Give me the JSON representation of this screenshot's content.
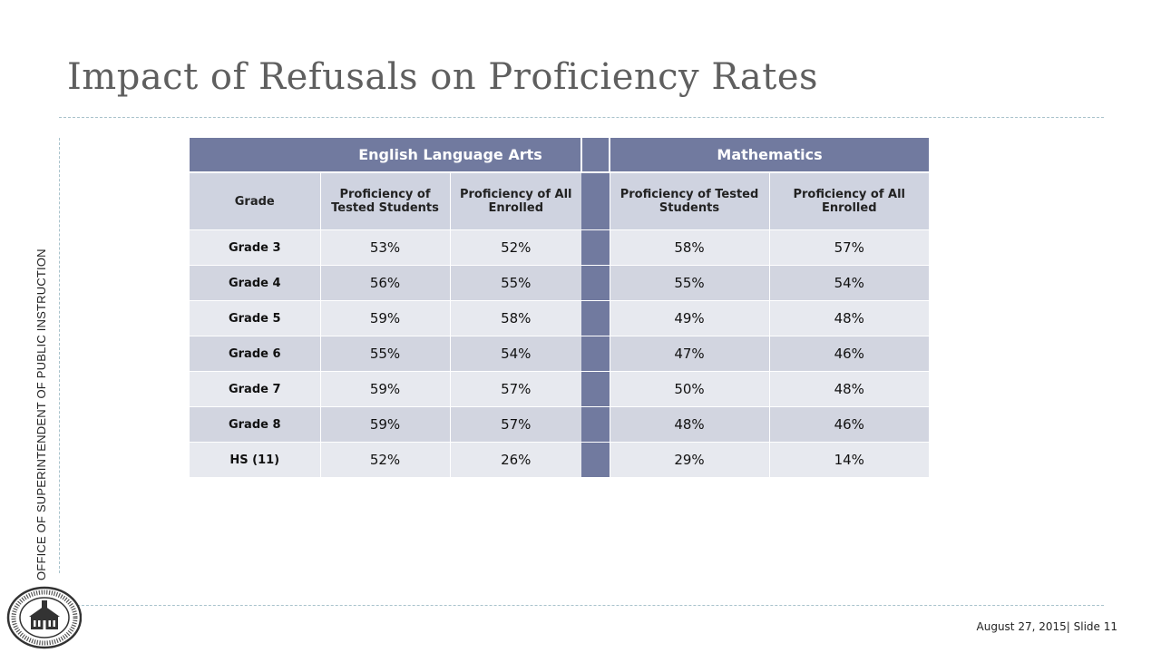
{
  "slide": {
    "title": "Impact of Refusals on Proficiency Rates",
    "sidebar_text": "OFFICE OF SUPERINTENDENT OF PUBLIC INSTRUCTION",
    "footer": "August 27, 2015|   Slide 11",
    "seal_text": "SUPERINTENDENT OF PUBLIC INSTRUCTION · WASHINGTON"
  },
  "table": {
    "subjects": {
      "ela": "English Language Arts",
      "math": "Mathematics"
    },
    "headers": {
      "grade": "Grade",
      "ela_tested": "Proficiency of Tested Students",
      "ela_all": "Proficiency of All Enrolled",
      "math_tested": "Proficiency of Tested Students",
      "math_all": "Proficiency of All Enrolled"
    },
    "rows": [
      {
        "grade": "Grade 3",
        "ela_tested": "53%",
        "ela_all": "52%",
        "math_tested": "58%",
        "math_all": "57%"
      },
      {
        "grade": "Grade 4",
        "ela_tested": "56%",
        "ela_all": "55%",
        "math_tested": "55%",
        "math_all": "54%"
      },
      {
        "grade": "Grade 5",
        "ela_tested": "59%",
        "ela_all": "58%",
        "math_tested": "49%",
        "math_all": "48%"
      },
      {
        "grade": "Grade 6",
        "ela_tested": "55%",
        "ela_all": "54%",
        "math_tested": "47%",
        "math_all": "46%"
      },
      {
        "grade": "Grade 7",
        "ela_tested": "59%",
        "ela_all": "57%",
        "math_tested": "50%",
        "math_all": "48%"
      },
      {
        "grade": "Grade 8",
        "ela_tested": "59%",
        "ela_all": "57%",
        "math_tested": "48%",
        "math_all": "46%"
      },
      {
        "grade": "HS (11)",
        "ela_tested": "52%",
        "ela_all": "26%",
        "math_tested": "29%",
        "math_all": "14%"
      }
    ]
  },
  "colors": {
    "header": "#717a9f",
    "subheader": "#cfd3e0",
    "row_light": "#e7e9ef",
    "row_dark": "#d2d5e0"
  }
}
